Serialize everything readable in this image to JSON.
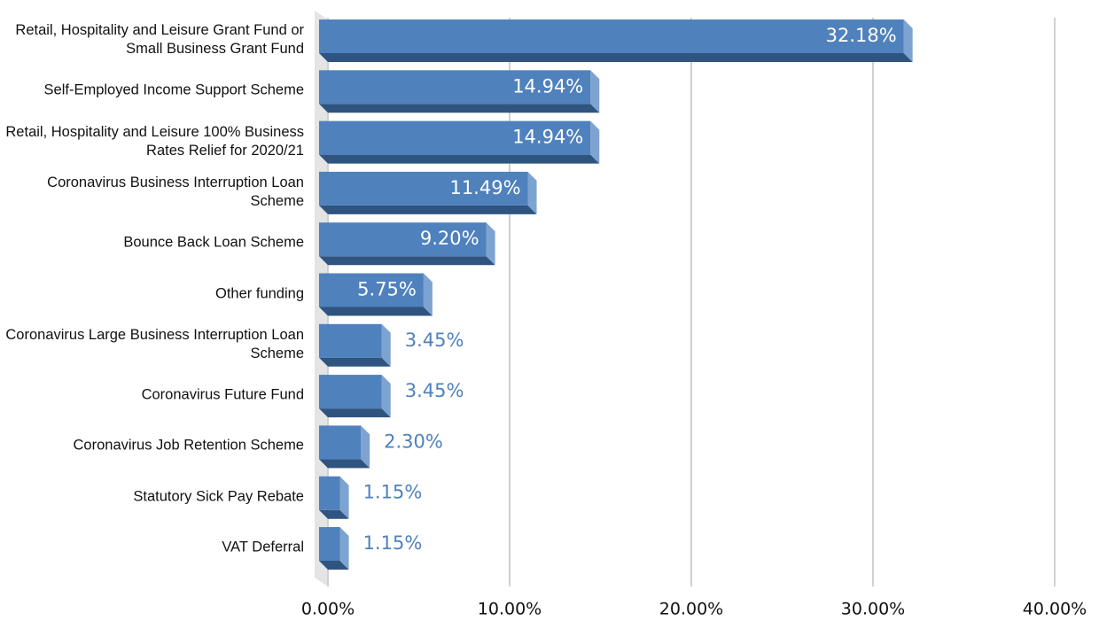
{
  "chart_data": {
    "type": "bar",
    "orientation": "horizontal",
    "categories": [
      "Retail, Hospitality and Leisure Grant Fund or Small Business Grant Fund",
      "Self-Employed Income Support Scheme",
      "Retail, Hospitality and Leisure 100% Business Rates Relief for 2020/21",
      "Coronavirus Business Interruption Loan Scheme",
      "Bounce Back Loan Scheme",
      "Other funding",
      "Coronavirus Large Business Interruption Loan Scheme",
      "Coronavirus Future Fund",
      "Coronavirus Job Retention Scheme",
      "Statutory Sick Pay Rebate",
      "VAT Deferral"
    ],
    "values": [
      32.18,
      14.94,
      14.94,
      11.49,
      9.2,
      5.75,
      3.45,
      3.45,
      2.3,
      1.15,
      1.15
    ],
    "value_labels": [
      "32.18%",
      "14.94%",
      "14.94%",
      "11.49%",
      "9.20%",
      "5.75%",
      "3.45%",
      "3.45%",
      "2.30%",
      "1.15%",
      "1.15%"
    ],
    "color": "#4f81bd",
    "xlim": [
      0,
      40
    ],
    "xticks": [
      {
        "value": 0,
        "label": "0.00%"
      },
      {
        "value": 10,
        "label": "10.00%"
      },
      {
        "value": 20,
        "label": "20.00%"
      },
      {
        "value": 30,
        "label": "30.00%"
      },
      {
        "value": 40,
        "label": "40.00%"
      }
    ],
    "grid": true
  }
}
